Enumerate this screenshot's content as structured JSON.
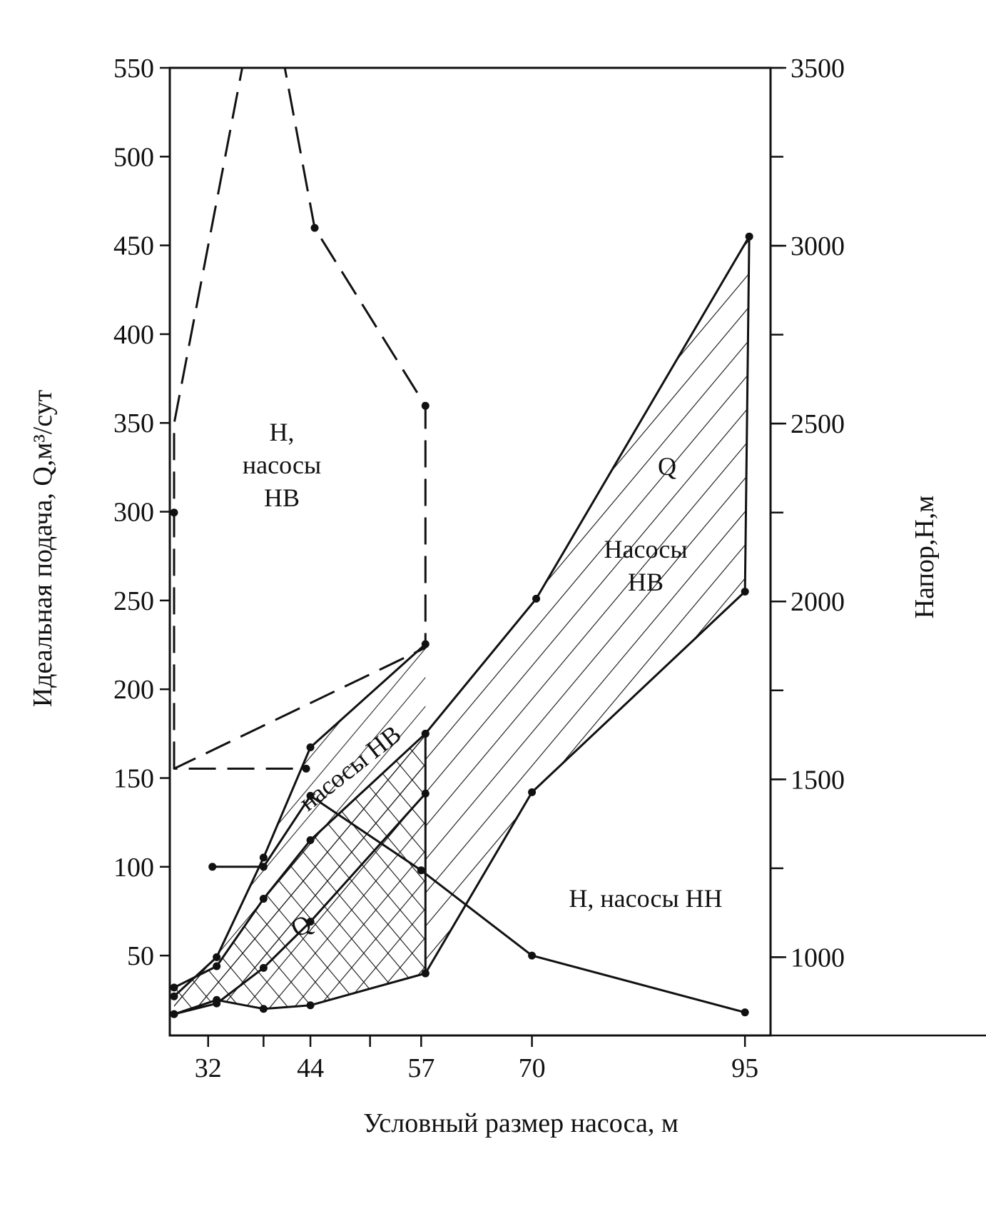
{
  "chart_data": {
    "type": "line",
    "xlabel": "Условный размер насоса, м",
    "ylabel_left": "Идеальная подача, Q,м³/сут",
    "ylabel_right": "Напор,Н,м",
    "x_ticks": [
      "32",
      "44",
      "57",
      "70",
      "95"
    ],
    "x_tick_values": [
      32,
      44,
      57,
      70,
      95
    ],
    "y_left_ticks": [
      "50",
      "100",
      "150",
      "200",
      "250",
      "300",
      "350",
      "400",
      "450",
      "500",
      "550"
    ],
    "y_left_tick_values": [
      50,
      100,
      150,
      200,
      250,
      300,
      350,
      400,
      450,
      500,
      550
    ],
    "y_right_ticks": [
      "1000",
      "1500",
      "2000",
      "2500",
      "3000",
      "3500"
    ],
    "y_right_tick_values": [
      1000,
      1500,
      2000,
      2500,
      3000,
      3500
    ],
    "xlim": [
      27.5,
      98
    ],
    "ylim_left": [
      5,
      550
    ],
    "ylim_right": [
      780,
      3500
    ],
    "series": [
      {
        "role": "H_NV_dashed",
        "axis": "right",
        "style": "dashed",
        "x": [
          28,
          28,
          36,
          41,
          44.5,
          57.5,
          57.5,
          28,
          28,
          43.5
        ],
        "y": [
          1530,
          2500,
          3500,
          3500,
          3050,
          2550,
          1870,
          1530,
          1530,
          1530
        ]
      },
      {
        "role": "Q_NV_upper",
        "axis": "left",
        "x": [
          28,
          33,
          38.5,
          44,
          57.5
        ],
        "y": [
          32,
          44,
          82,
          115,
          175
        ]
      },
      {
        "role": "Q_NV_lower",
        "axis": "left",
        "x": [
          28,
          33,
          38.5,
          44,
          57.5
        ],
        "y": [
          17,
          25,
          20,
          22,
          40
        ]
      },
      {
        "role": "H_NV_solid_upper",
        "axis": "right",
        "x": [
          28,
          33,
          38.5,
          44,
          57.5
        ],
        "y": [
          890,
          1000,
          1280,
          1590,
          1880
        ]
      },
      {
        "role": "H_NV_solid_lower",
        "axis": "right",
        "x": [
          28,
          33,
          38.5,
          44,
          57.5
        ],
        "y": [
          840,
          870,
          970,
          1100,
          1460
        ]
      },
      {
        "role": "Q_NV_big_upper",
        "axis": "left",
        "x": [
          57.5,
          70.5,
          95.5
        ],
        "y": [
          175,
          251,
          455
        ]
      },
      {
        "role": "Q_NV_big_lower",
        "axis": "left",
        "x": [
          57.5,
          70,
          95
        ],
        "y": [
          40,
          142,
          255
        ]
      },
      {
        "role": "H_NN",
        "axis": "left",
        "x": [
          32.5,
          38.5,
          44,
          57,
          70,
          95
        ],
        "y": [
          100,
          100,
          140,
          98,
          50,
          18
        ]
      }
    ],
    "annotations": [
      {
        "text_lines": [
          "Н,",
          "насосы",
          "НВ"
        ]
      },
      {
        "text_lines": [
          "Q"
        ]
      },
      {
        "text_lines": [
          "Насосы",
          "НВ"
        ]
      },
      {
        "text_lines": [
          "насосы НВ"
        ]
      },
      {
        "text_lines": [
          "Q"
        ]
      },
      {
        "text_lines": [
          "Н, насосы НН"
        ]
      }
    ]
  }
}
